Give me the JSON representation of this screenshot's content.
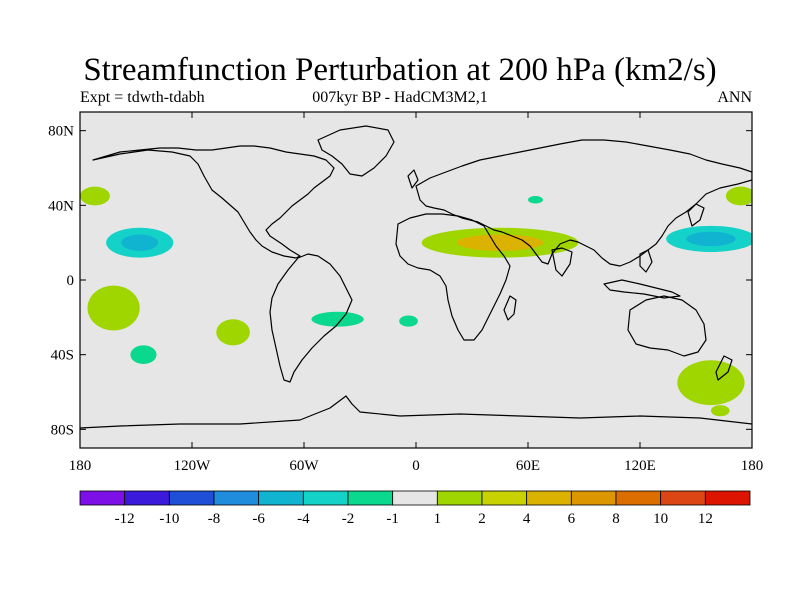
{
  "title": "Streamfunction Perturbation at 200 hPa (km2/s)",
  "left_label": "Expt = tdwth-tdabh",
  "center_label": "007kyr BP - HadCM3M2,1",
  "right_label": "ANN",
  "map": {
    "lon_range": [
      -180,
      180
    ],
    "lat_range": [
      -90,
      90
    ],
    "lat_ticks": [
      {
        "value": 80,
        "label": "80N"
      },
      {
        "value": 40,
        "label": "40N"
      },
      {
        "value": 0,
        "label": "0"
      },
      {
        "value": -40,
        "label": "40S"
      },
      {
        "value": -80,
        "label": "80S"
      }
    ],
    "lon_ticks": [
      {
        "value": -180,
        "label": "180"
      },
      {
        "value": -120,
        "label": "120W"
      },
      {
        "value": -60,
        "label": "60W"
      },
      {
        "value": 0,
        "label": "0"
      },
      {
        "value": 60,
        "label": "60E"
      },
      {
        "value": 120,
        "label": "120E"
      },
      {
        "value": 180,
        "label": "180"
      }
    ],
    "background_color": "#e6e6e6",
    "coastline_color": "#000000"
  },
  "colorbar": {
    "colors": [
      "#7d10e6",
      "#3c1adc",
      "#1f4fd6",
      "#1f8cdc",
      "#10b4d0",
      "#14d2c8",
      "#0ad88e",
      "#e6e6e6",
      "#a0d600",
      "#c8d200",
      "#dcb200",
      "#dc9600",
      "#dc6e00",
      "#dc4614",
      "#dc1400"
    ],
    "labels": [
      "-12",
      "-10",
      "-8",
      "-6",
      "-4",
      "-2",
      "-1",
      "1",
      "2",
      "4",
      "6",
      "8",
      "10",
      "12"
    ]
  },
  "anomalies": [
    {
      "name": "north-pacific-west-negative",
      "lon": -148,
      "lat": 20,
      "rx": 18,
      "ry": 8,
      "color": "#14d2c8",
      "core_color": "#10b4d0"
    },
    {
      "name": "north-pacific-east-negative",
      "lon": 158,
      "lat": 22,
      "rx": 24,
      "ry": 7,
      "color": "#14d2c8",
      "core_color": "#10b4d0"
    },
    {
      "name": "north-pacific-40n-west",
      "lon": -172,
      "lat": 45,
      "rx": 8,
      "ry": 5,
      "color": "#a0d600"
    },
    {
      "name": "north-pacific-40n-east",
      "lon": 174,
      "lat": 45,
      "rx": 8,
      "ry": 5,
      "color": "#a0d600"
    },
    {
      "name": "africa-asia-positive",
      "lon": 45,
      "lat": 20,
      "rx": 42,
      "ry": 8,
      "color": "#a0d600",
      "core_color": "#dcb200"
    },
    {
      "name": "south-pacific-west-positive",
      "lon": -162,
      "lat": -15,
      "rx": 14,
      "ry": 12,
      "color": "#a0d600"
    },
    {
      "name": "south-pacific-east-positive",
      "lon": -98,
      "lat": -28,
      "rx": 9,
      "ry": 7,
      "color": "#a0d600"
    },
    {
      "name": "south-pacific-negative",
      "lon": -146,
      "lat": -40,
      "rx": 7,
      "ry": 5,
      "color": "#0ad88e"
    },
    {
      "name": "south-atlantic-negative-1",
      "lon": -42,
      "lat": -21,
      "rx": 14,
      "ry": 4,
      "color": "#0ad88e"
    },
    {
      "name": "south-atlantic-negative-2",
      "lon": -4,
      "lat": -22,
      "rx": 5,
      "ry": 3,
      "color": "#0ad88e"
    },
    {
      "name": "tasman-positive",
      "lon": 158,
      "lat": -55,
      "rx": 18,
      "ry": 12,
      "color": "#a0d600"
    },
    {
      "name": "tasman-positive-tail",
      "lon": 163,
      "lat": -70,
      "rx": 5,
      "ry": 3,
      "color": "#a0d600"
    },
    {
      "name": "mediterranean-negative",
      "lon": 64,
      "lat": 43,
      "rx": 4,
      "ry": 2,
      "color": "#0ad88e"
    }
  ]
}
